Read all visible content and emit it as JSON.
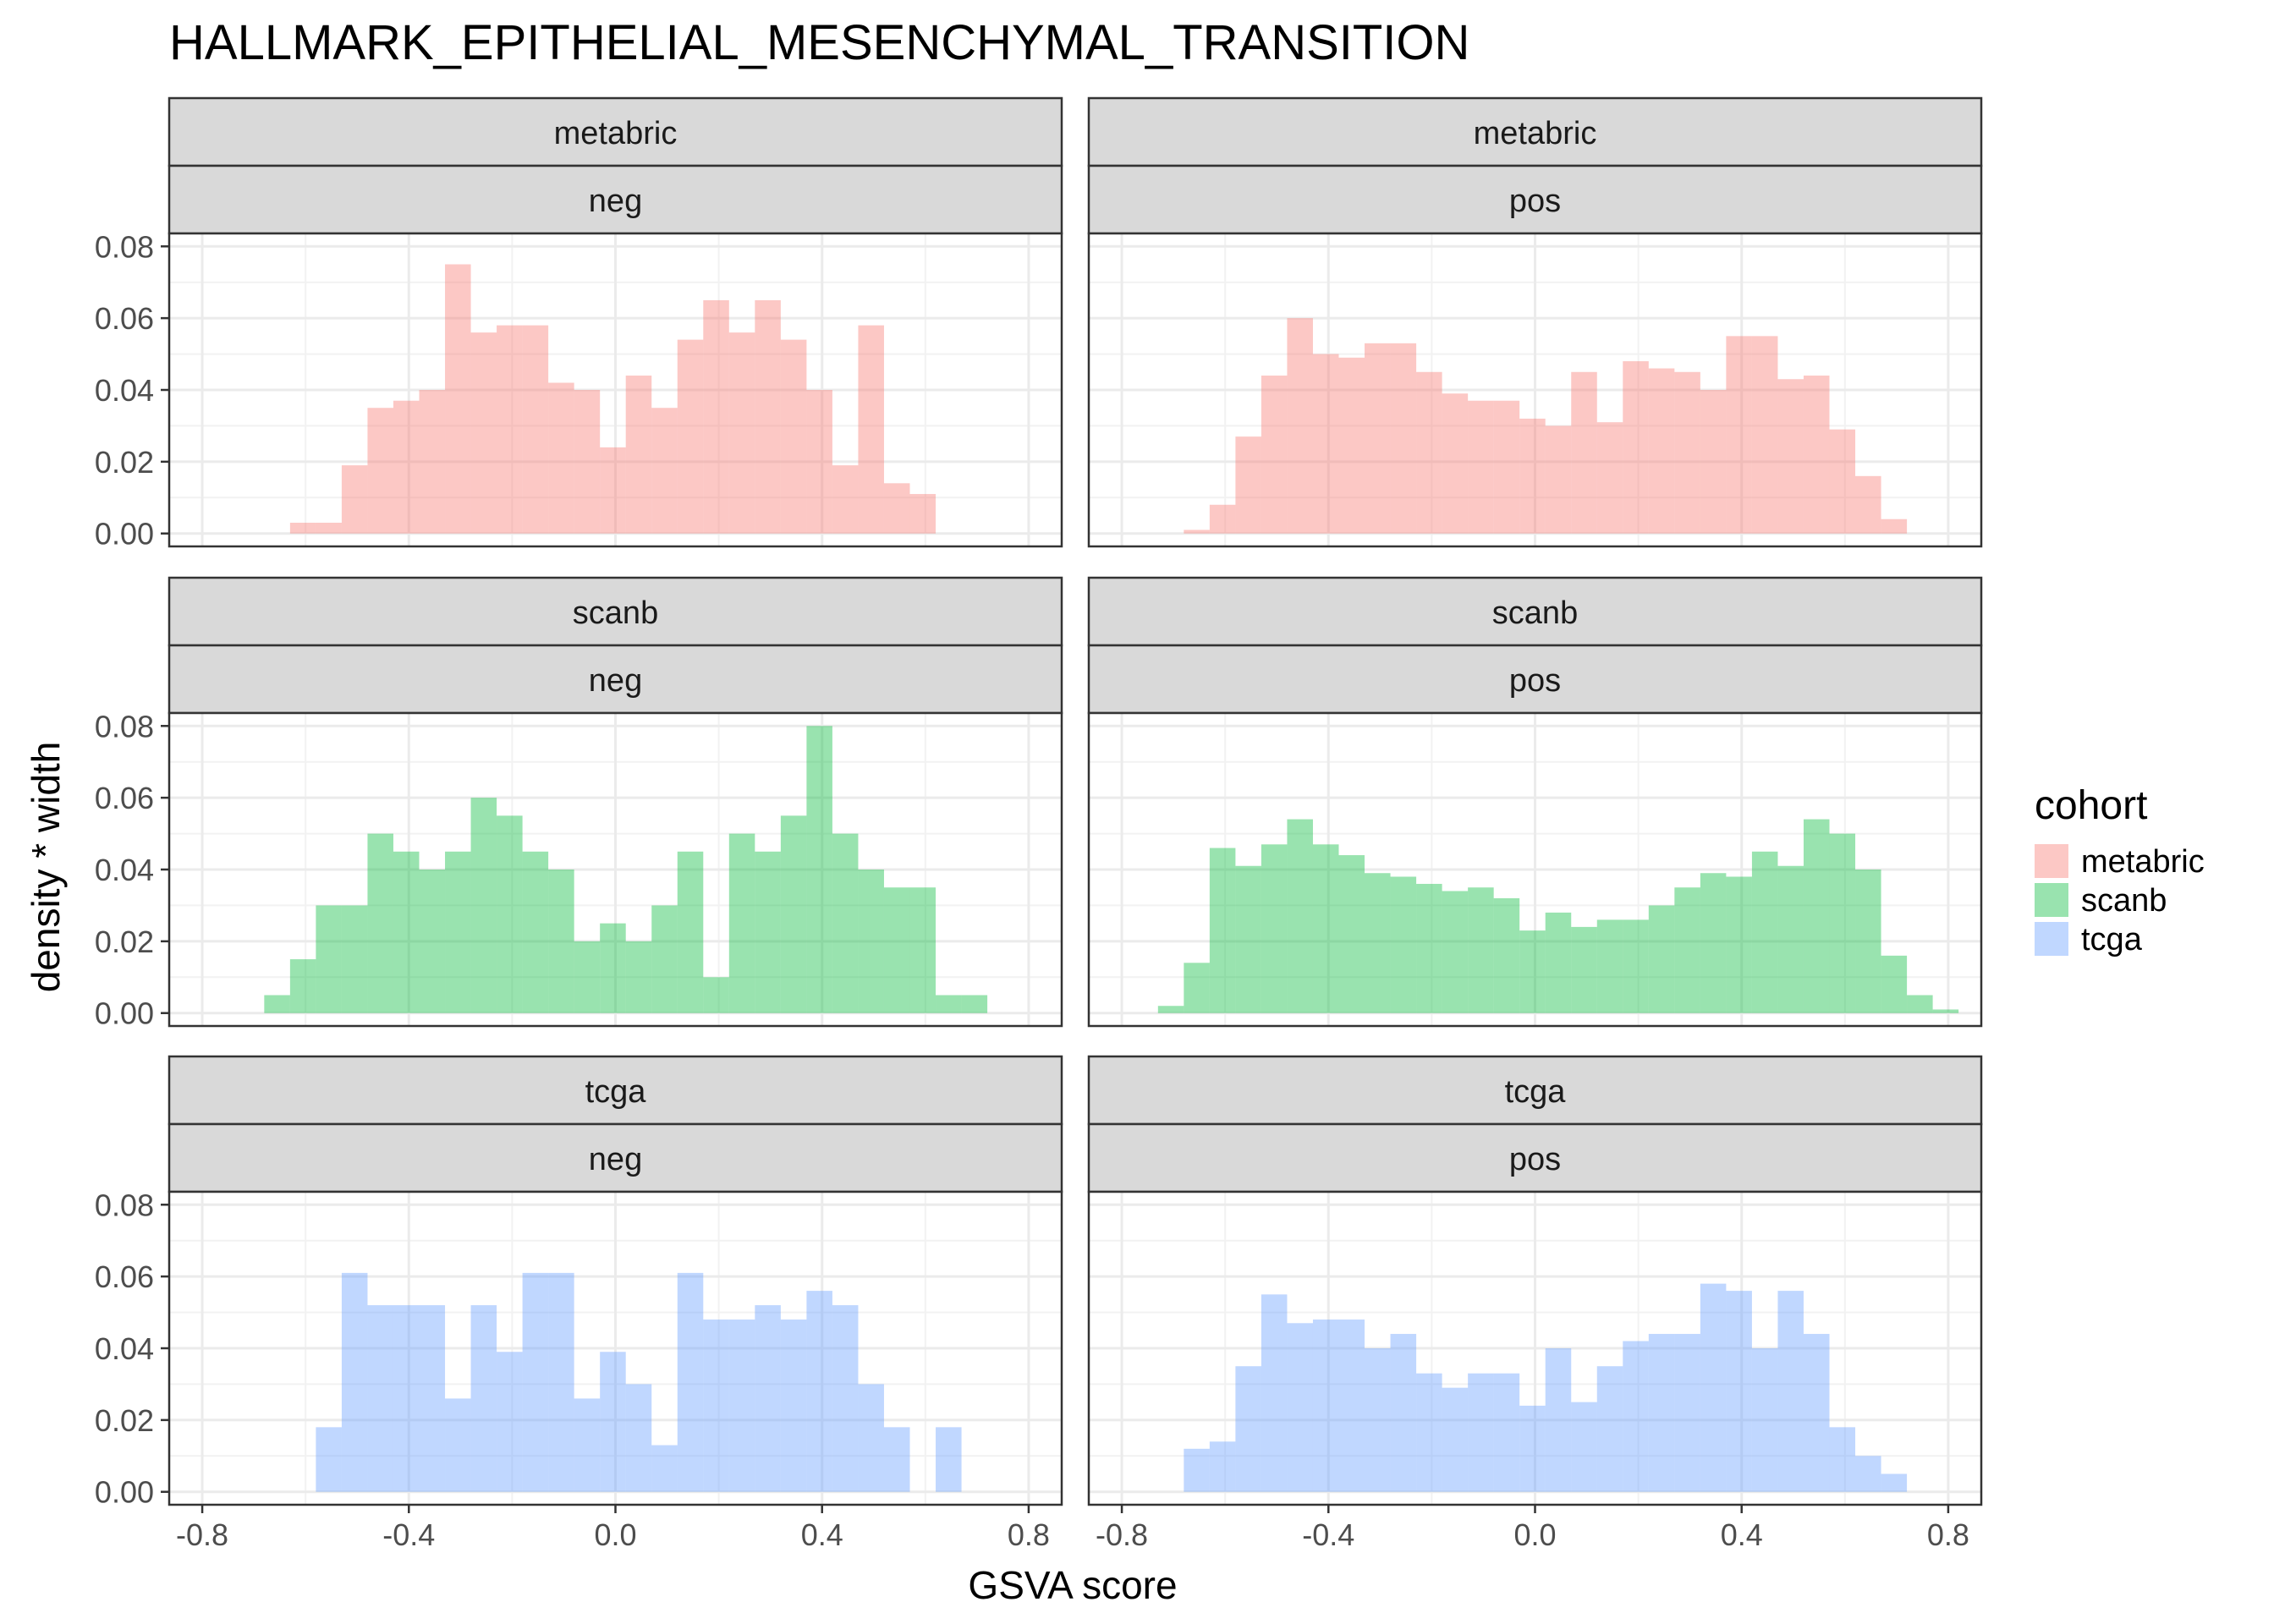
{
  "chart_data": {
    "type": "bar",
    "title": "HALLMARK_EPITHELIAL_MESENCHYMAL_TRANSITION",
    "xlabel": "GSVA score",
    "ylabel": "density * width",
    "xlim": [
      -0.8,
      0.8
    ],
    "ylim": [
      0,
      0.08
    ],
    "xticks": [
      "-0.8",
      "-0.4",
      "0.0",
      "0.4",
      "0.8"
    ],
    "yticks": [
      "0.00",
      "0.02",
      "0.04",
      "0.06",
      "0.08"
    ],
    "grid": true,
    "legend": {
      "title": "cohort",
      "position": "right",
      "entries": [
        {
          "name": "metabric",
          "color": "#F8766D"
        },
        {
          "name": "scanb",
          "color": "#00BA38"
        },
        {
          "name": "tcga",
          "color": "#619CFF"
        }
      ]
    },
    "panels": [
      {
        "cohort": "metabric",
        "status": "neg",
        "x_start": -0.63,
        "bin_width": 0.05,
        "values": [
          0.003,
          0.003,
          0.019,
          0.035,
          0.037,
          0.04,
          0.075,
          0.056,
          0.058,
          0.058,
          0.042,
          0.04,
          0.024,
          0.044,
          0.035,
          0.054,
          0.065,
          0.056,
          0.065,
          0.054,
          0.04,
          0.019,
          0.058,
          0.014,
          0.011
        ]
      },
      {
        "cohort": "metabric",
        "status": "pos",
        "x_start": -0.68,
        "bin_width": 0.05,
        "values": [
          0.001,
          0.008,
          0.027,
          0.044,
          0.06,
          0.05,
          0.049,
          0.053,
          0.053,
          0.045,
          0.039,
          0.037,
          0.037,
          0.032,
          0.03,
          0.045,
          0.031,
          0.048,
          0.046,
          0.045,
          0.04,
          0.055,
          0.055,
          0.043,
          0.044,
          0.029,
          0.016,
          0.004
        ]
      },
      {
        "cohort": "scanb",
        "status": "neg",
        "x_start": -0.68,
        "bin_width": 0.05,
        "values": [
          0.005,
          0.015,
          0.03,
          0.03,
          0.05,
          0.045,
          0.04,
          0.045,
          0.06,
          0.055,
          0.045,
          0.04,
          0.02,
          0.025,
          0.02,
          0.03,
          0.045,
          0.01,
          0.05,
          0.045,
          0.055,
          0.08,
          0.05,
          0.04,
          0.035,
          0.035,
          0.005,
          0.005
        ]
      },
      {
        "cohort": "scanb",
        "status": "pos",
        "x_start": -0.73,
        "bin_width": 0.05,
        "values": [
          0.002,
          0.014,
          0.046,
          0.041,
          0.047,
          0.054,
          0.047,
          0.044,
          0.039,
          0.038,
          0.036,
          0.034,
          0.035,
          0.032,
          0.023,
          0.028,
          0.024,
          0.026,
          0.026,
          0.03,
          0.035,
          0.039,
          0.038,
          0.045,
          0.041,
          0.054,
          0.05,
          0.04,
          0.016,
          0.005,
          0.001
        ]
      },
      {
        "cohort": "tcga",
        "status": "neg",
        "x_start": -0.58,
        "bin_width": 0.05,
        "values": [
          0.018,
          0.061,
          0.052,
          0.052,
          0.052,
          0.026,
          0.052,
          0.039,
          0.061,
          0.061,
          0.026,
          0.039,
          0.03,
          0.013,
          0.061,
          0.048,
          0.048,
          0.052,
          0.048,
          0.056,
          0.052,
          0.03,
          0.018,
          0.0,
          0.018
        ]
      },
      {
        "cohort": "tcga",
        "status": "pos",
        "x_start": -0.68,
        "bin_width": 0.05,
        "values": [
          0.012,
          0.014,
          0.035,
          0.055,
          0.047,
          0.048,
          0.048,
          0.04,
          0.044,
          0.033,
          0.029,
          0.033,
          0.033,
          0.024,
          0.04,
          0.025,
          0.035,
          0.042,
          0.044,
          0.044,
          0.058,
          0.056,
          0.04,
          0.056,
          0.044,
          0.018,
          0.01,
          0.005
        ]
      }
    ]
  }
}
